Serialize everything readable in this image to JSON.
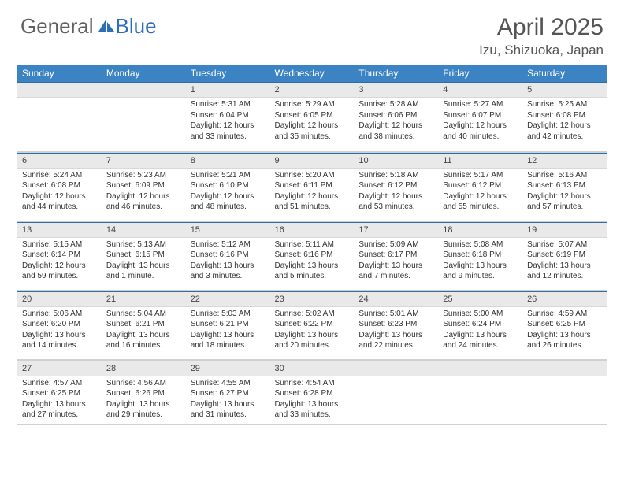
{
  "logo": {
    "left": "General",
    "right": "Blue"
  },
  "header": {
    "month_year": "April 2025",
    "location": "Izu, Shizuoka, Japan"
  },
  "colors": {
    "header_bg": "#3b83c2",
    "header_border": "#2d6fa5",
    "daynum_bg": "#e9e9e9"
  },
  "weekdays": [
    "Sunday",
    "Monday",
    "Tuesday",
    "Wednesday",
    "Thursday",
    "Friday",
    "Saturday"
  ],
  "weeks": [
    [
      null,
      null,
      {
        "n": "1",
        "sr": "5:31 AM",
        "ss": "6:04 PM",
        "dl": "12 hours and 33 minutes."
      },
      {
        "n": "2",
        "sr": "5:29 AM",
        "ss": "6:05 PM",
        "dl": "12 hours and 35 minutes."
      },
      {
        "n": "3",
        "sr": "5:28 AM",
        "ss": "6:06 PM",
        "dl": "12 hours and 38 minutes."
      },
      {
        "n": "4",
        "sr": "5:27 AM",
        "ss": "6:07 PM",
        "dl": "12 hours and 40 minutes."
      },
      {
        "n": "5",
        "sr": "5:25 AM",
        "ss": "6:08 PM",
        "dl": "12 hours and 42 minutes."
      }
    ],
    [
      {
        "n": "6",
        "sr": "5:24 AM",
        "ss": "6:08 PM",
        "dl": "12 hours and 44 minutes."
      },
      {
        "n": "7",
        "sr": "5:23 AM",
        "ss": "6:09 PM",
        "dl": "12 hours and 46 minutes."
      },
      {
        "n": "8",
        "sr": "5:21 AM",
        "ss": "6:10 PM",
        "dl": "12 hours and 48 minutes."
      },
      {
        "n": "9",
        "sr": "5:20 AM",
        "ss": "6:11 PM",
        "dl": "12 hours and 51 minutes."
      },
      {
        "n": "10",
        "sr": "5:18 AM",
        "ss": "6:12 PM",
        "dl": "12 hours and 53 minutes."
      },
      {
        "n": "11",
        "sr": "5:17 AM",
        "ss": "6:12 PM",
        "dl": "12 hours and 55 minutes."
      },
      {
        "n": "12",
        "sr": "5:16 AM",
        "ss": "6:13 PM",
        "dl": "12 hours and 57 minutes."
      }
    ],
    [
      {
        "n": "13",
        "sr": "5:15 AM",
        "ss": "6:14 PM",
        "dl": "12 hours and 59 minutes."
      },
      {
        "n": "14",
        "sr": "5:13 AM",
        "ss": "6:15 PM",
        "dl": "13 hours and 1 minute."
      },
      {
        "n": "15",
        "sr": "5:12 AM",
        "ss": "6:16 PM",
        "dl": "13 hours and 3 minutes."
      },
      {
        "n": "16",
        "sr": "5:11 AM",
        "ss": "6:16 PM",
        "dl": "13 hours and 5 minutes."
      },
      {
        "n": "17",
        "sr": "5:09 AM",
        "ss": "6:17 PM",
        "dl": "13 hours and 7 minutes."
      },
      {
        "n": "18",
        "sr": "5:08 AM",
        "ss": "6:18 PM",
        "dl": "13 hours and 9 minutes."
      },
      {
        "n": "19",
        "sr": "5:07 AM",
        "ss": "6:19 PM",
        "dl": "13 hours and 12 minutes."
      }
    ],
    [
      {
        "n": "20",
        "sr": "5:06 AM",
        "ss": "6:20 PM",
        "dl": "13 hours and 14 minutes."
      },
      {
        "n": "21",
        "sr": "5:04 AM",
        "ss": "6:21 PM",
        "dl": "13 hours and 16 minutes."
      },
      {
        "n": "22",
        "sr": "5:03 AM",
        "ss": "6:21 PM",
        "dl": "13 hours and 18 minutes."
      },
      {
        "n": "23",
        "sr": "5:02 AM",
        "ss": "6:22 PM",
        "dl": "13 hours and 20 minutes."
      },
      {
        "n": "24",
        "sr": "5:01 AM",
        "ss": "6:23 PM",
        "dl": "13 hours and 22 minutes."
      },
      {
        "n": "25",
        "sr": "5:00 AM",
        "ss": "6:24 PM",
        "dl": "13 hours and 24 minutes."
      },
      {
        "n": "26",
        "sr": "4:59 AM",
        "ss": "6:25 PM",
        "dl": "13 hours and 26 minutes."
      }
    ],
    [
      {
        "n": "27",
        "sr": "4:57 AM",
        "ss": "6:25 PM",
        "dl": "13 hours and 27 minutes."
      },
      {
        "n": "28",
        "sr": "4:56 AM",
        "ss": "6:26 PM",
        "dl": "13 hours and 29 minutes."
      },
      {
        "n": "29",
        "sr": "4:55 AM",
        "ss": "6:27 PM",
        "dl": "13 hours and 31 minutes."
      },
      {
        "n": "30",
        "sr": "4:54 AM",
        "ss": "6:28 PM",
        "dl": "13 hours and 33 minutes."
      },
      null,
      null,
      null
    ]
  ],
  "labels": {
    "sunrise": "Sunrise: ",
    "sunset": "Sunset: ",
    "daylight": "Daylight: "
  }
}
